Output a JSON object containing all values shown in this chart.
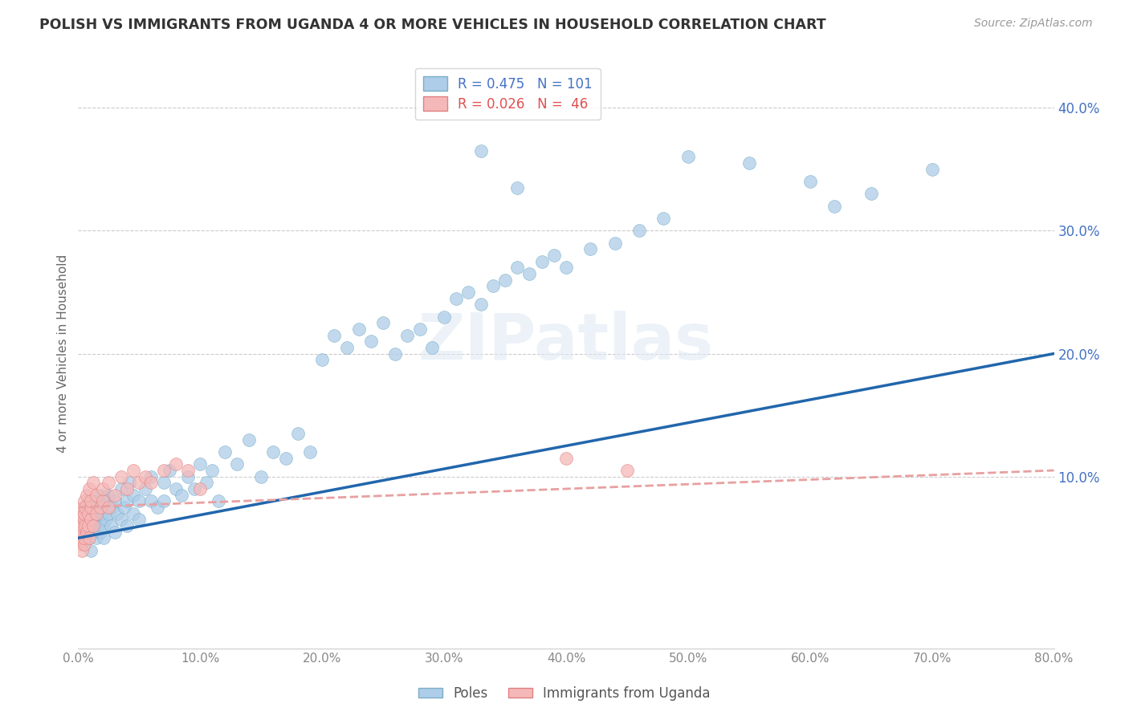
{
  "title": "POLISH VS IMMIGRANTS FROM UGANDA 4 OR MORE VEHICLES IN HOUSEHOLD CORRELATION CHART",
  "source": "Source: ZipAtlas.com",
  "ylabel": "4 or more Vehicles in Household",
  "x_tick_labels": [
    "0.0%",
    "10.0%",
    "20.0%",
    "30.0%",
    "40.0%",
    "50.0%",
    "60.0%",
    "70.0%",
    "80.0%"
  ],
  "x_tick_vals": [
    0,
    10,
    20,
    30,
    40,
    50,
    60,
    70,
    80
  ],
  "y_tick_labels": [
    "10.0%",
    "20.0%",
    "30.0%",
    "40.0%"
  ],
  "y_tick_vals": [
    10,
    20,
    30,
    40
  ],
  "xlim": [
    0,
    80
  ],
  "ylim": [
    -4,
    44
  ],
  "poles_color": "#aecde8",
  "poles_edge_color": "#7aaec8",
  "uganda_color": "#f5b8b8",
  "uganda_edge_color": "#e08080",
  "trendline_poles_color": "#2166ac",
  "trendline_uganda_color": "#e8a0a0",
  "watermark": "ZIPatlas",
  "background_color": "#ffffff",
  "grid_color": "#cccccc",
  "title_color": "#333333",
  "source_color": "#999999",
  "ylabel_color": "#666666",
  "xtick_color": "#888888",
  "ytick_color": "#4472c4",
  "legend1_text1": "R = 0.475   N = 101",
  "legend1_text2": "R = 0.026   N =  46",
  "legend1_color1": "#4472c4",
  "legend1_color2": "#e05050",
  "legend2_label1": "Poles",
  "legend2_label2": "Immigrants from Uganda",
  "poles_x": [
    0.3,
    0.4,
    0.5,
    0.5,
    0.6,
    0.7,
    0.8,
    0.8,
    0.9,
    1.0,
    1.0,
    1.0,
    1.1,
    1.2,
    1.2,
    1.3,
    1.4,
    1.5,
    1.5,
    1.6,
    1.7,
    1.8,
    1.9,
    2.0,
    2.0,
    2.1,
    2.2,
    2.3,
    2.5,
    2.5,
    2.7,
    2.8,
    3.0,
    3.0,
    3.2,
    3.5,
    3.5,
    3.8,
    4.0,
    4.0,
    4.2,
    4.5,
    4.5,
    5.0,
    5.0,
    5.5,
    6.0,
    6.0,
    6.5,
    7.0,
    7.0,
    7.5,
    8.0,
    8.5,
    9.0,
    9.5,
    10.0,
    10.5,
    11.0,
    11.5,
    12.0,
    13.0,
    14.0,
    15.0,
    16.0,
    17.0,
    18.0,
    19.0,
    20.0,
    21.0,
    22.0,
    23.0,
    24.0,
    25.0,
    26.0,
    27.0,
    28.0,
    29.0,
    30.0,
    31.0,
    32.0,
    33.0,
    34.0,
    35.0,
    36.0,
    37.0,
    38.0,
    39.0,
    40.0,
    42.0,
    44.0,
    46.0,
    48.0,
    50.0,
    55.0,
    60.0,
    65.0,
    70.0,
    33.0,
    36.0,
    62.0
  ],
  "poles_y": [
    5.5,
    6.0,
    4.5,
    7.0,
    5.0,
    6.5,
    7.5,
    5.0,
    8.0,
    6.0,
    7.0,
    4.0,
    6.5,
    5.5,
    7.0,
    6.0,
    8.0,
    5.0,
    7.5,
    6.0,
    7.0,
    5.5,
    8.5,
    6.0,
    7.0,
    5.0,
    8.0,
    6.5,
    7.0,
    8.5,
    6.0,
    7.5,
    5.5,
    8.0,
    7.0,
    6.5,
    9.0,
    7.5,
    8.0,
    6.0,
    9.5,
    7.0,
    8.5,
    8.0,
    6.5,
    9.0,
    8.0,
    10.0,
    7.5,
    9.5,
    8.0,
    10.5,
    9.0,
    8.5,
    10.0,
    9.0,
    11.0,
    9.5,
    10.5,
    8.0,
    12.0,
    11.0,
    13.0,
    10.0,
    12.0,
    11.5,
    13.5,
    12.0,
    19.5,
    21.5,
    20.5,
    22.0,
    21.0,
    22.5,
    20.0,
    21.5,
    22.0,
    20.5,
    23.0,
    24.5,
    25.0,
    24.0,
    25.5,
    26.0,
    27.0,
    26.5,
    27.5,
    28.0,
    27.0,
    28.5,
    29.0,
    30.0,
    31.0,
    36.0,
    35.5,
    34.0,
    33.0,
    35.0,
    36.5,
    33.5,
    32.0
  ],
  "uganda_x": [
    0.2,
    0.2,
    0.3,
    0.3,
    0.3,
    0.4,
    0.4,
    0.4,
    0.5,
    0.5,
    0.5,
    0.5,
    0.5,
    0.6,
    0.6,
    0.7,
    0.7,
    0.8,
    0.8,
    0.9,
    0.9,
    1.0,
    1.0,
    1.0,
    1.2,
    1.2,
    1.5,
    1.5,
    1.8,
    2.0,
    2.0,
    2.5,
    2.5,
    3.0,
    3.5,
    4.0,
    4.5,
    5.0,
    5.5,
    6.0,
    7.0,
    8.0,
    9.0,
    10.0,
    40.0,
    45.0
  ],
  "uganda_y": [
    4.5,
    6.0,
    5.0,
    7.0,
    4.0,
    5.5,
    7.5,
    6.0,
    4.5,
    6.5,
    7.0,
    5.0,
    8.0,
    6.0,
    7.5,
    5.5,
    8.5,
    6.0,
    7.0,
    5.0,
    9.0,
    6.5,
    7.5,
    8.0,
    6.0,
    9.5,
    7.0,
    8.5,
    7.5,
    8.0,
    9.0,
    7.5,
    9.5,
    8.5,
    10.0,
    9.0,
    10.5,
    9.5,
    10.0,
    9.5,
    10.5,
    11.0,
    10.5,
    9.0,
    11.5,
    10.5
  ],
  "trendline_poles_x0": 0,
  "trendline_poles_y0": 5.0,
  "trendline_poles_x1": 80,
  "trendline_poles_y1": 20.0,
  "trendline_uganda_x0": 0,
  "trendline_uganda_y0": 7.5,
  "trendline_uganda_x1": 80,
  "trendline_uganda_y1": 10.5
}
